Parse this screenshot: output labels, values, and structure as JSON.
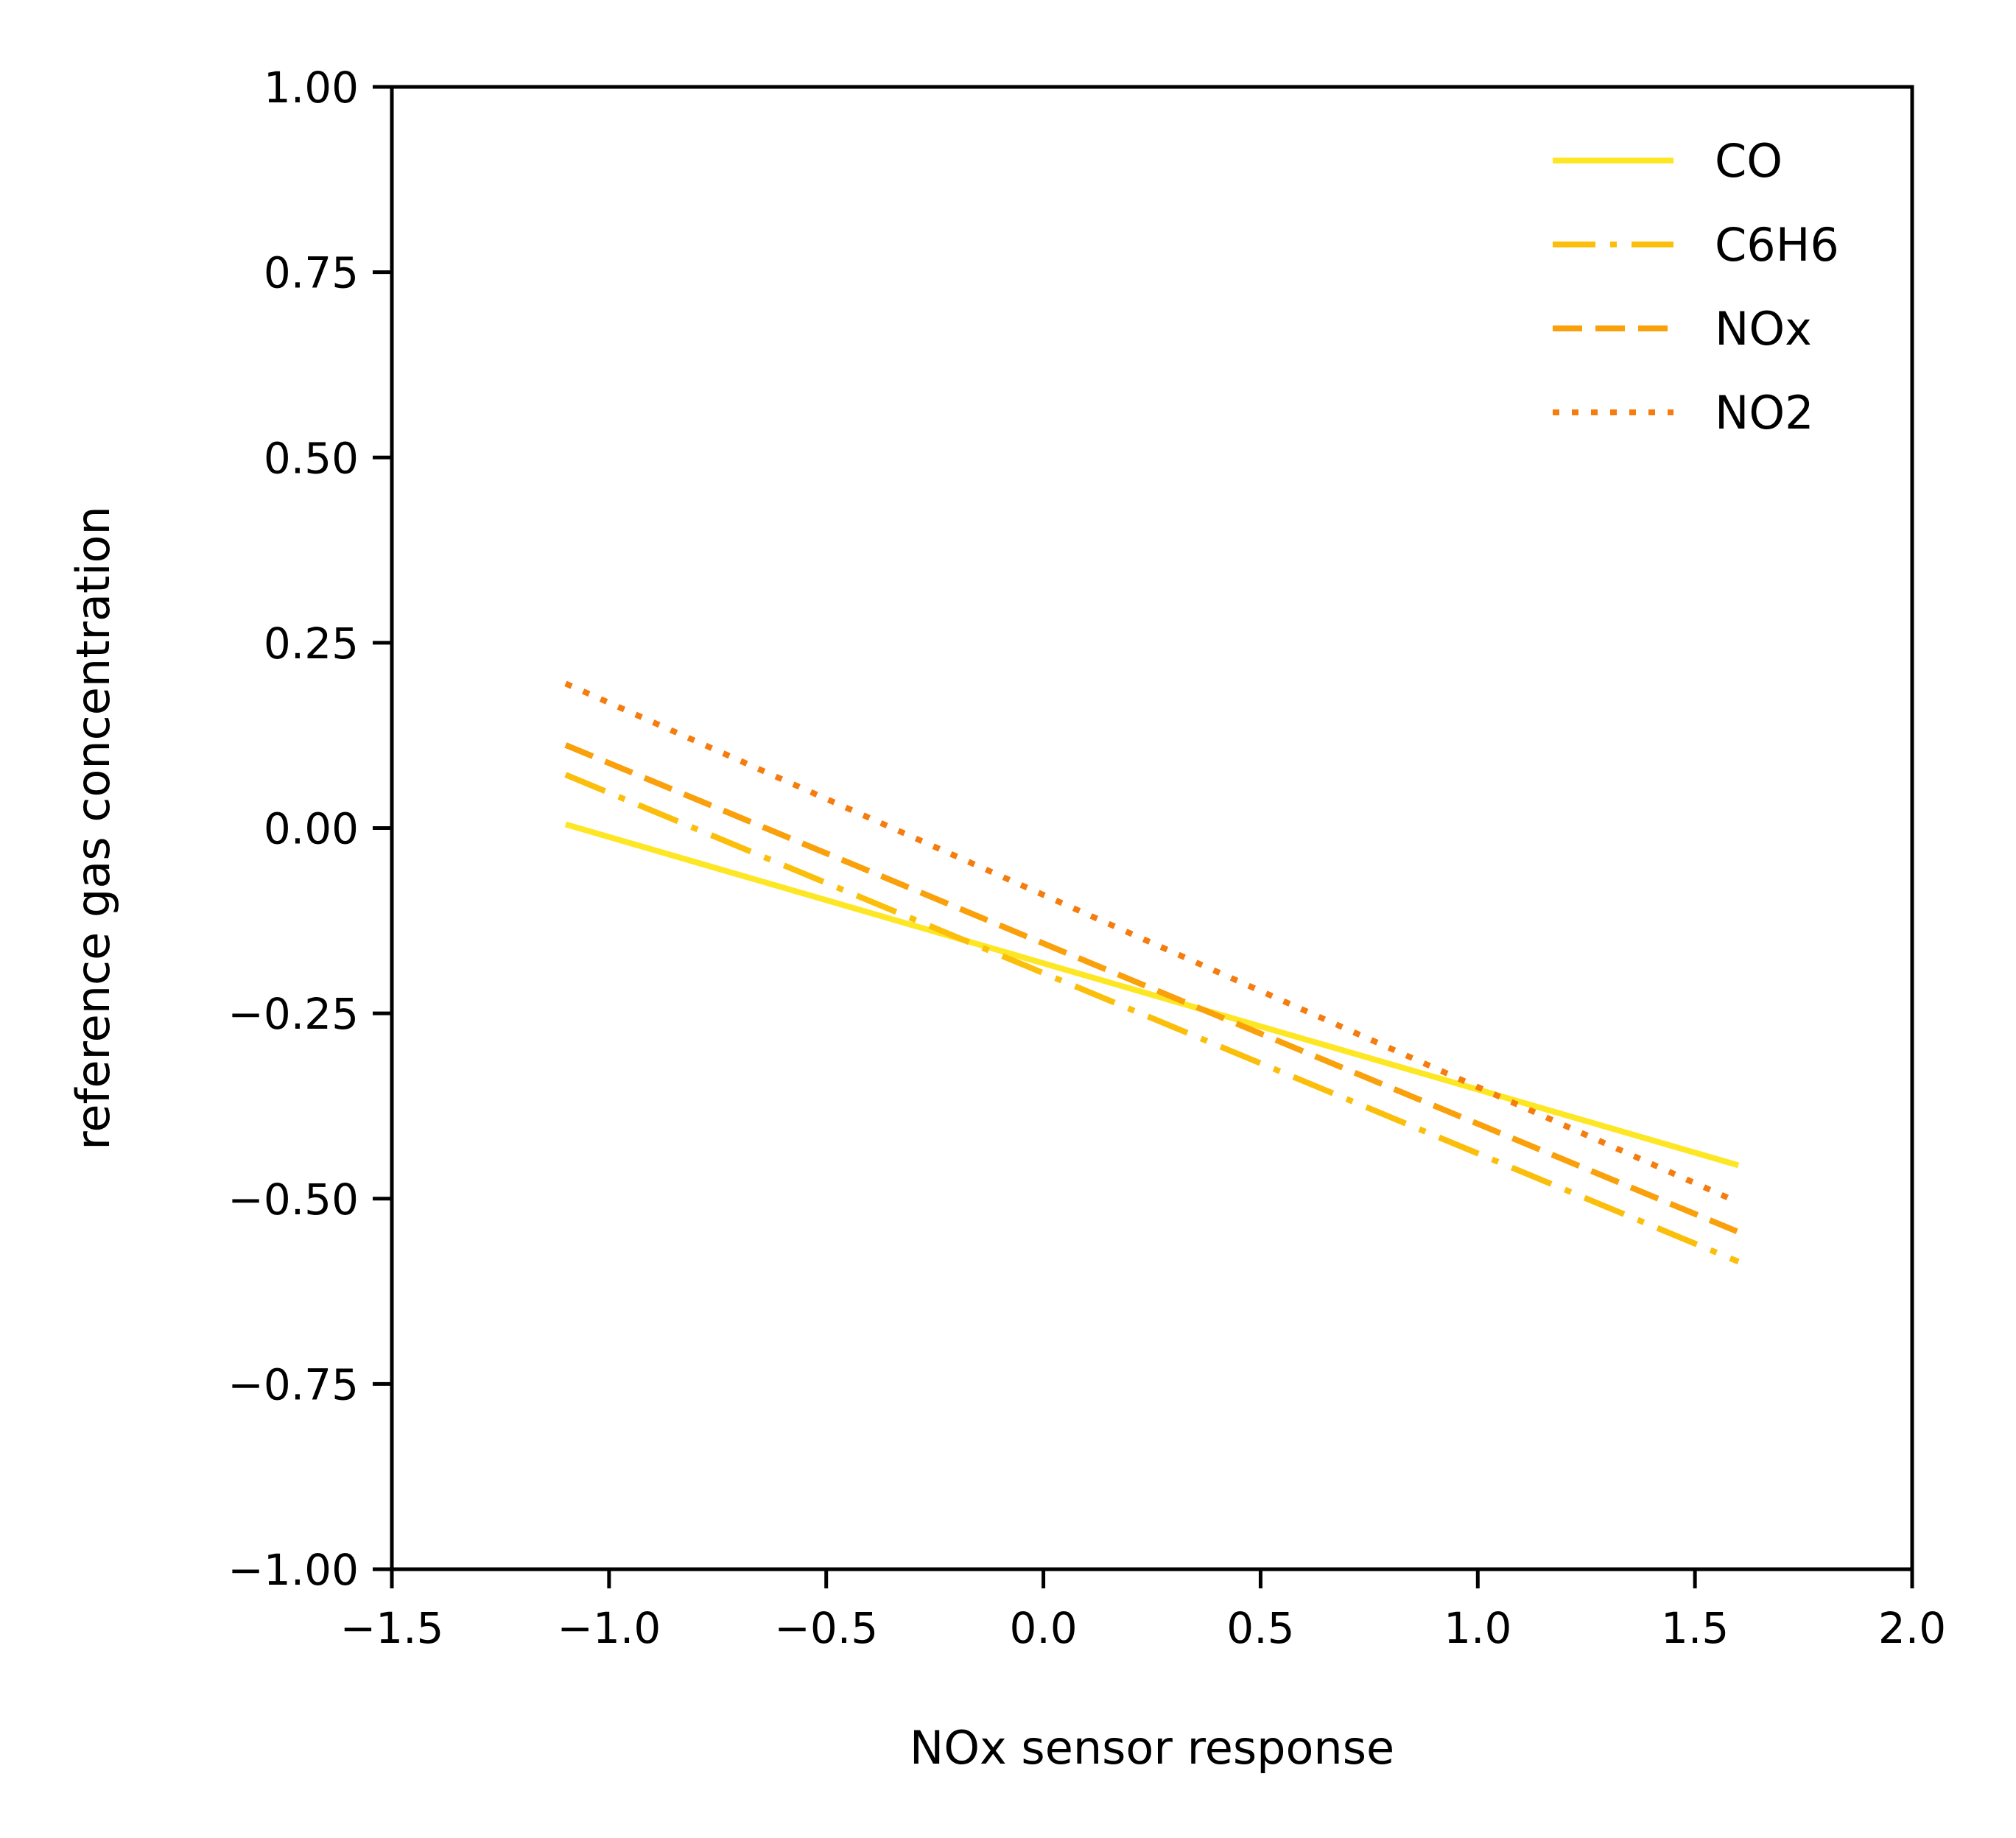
{
  "chart_data": {
    "type": "line",
    "title": "",
    "xlabel": "NOx sensor response",
    "ylabel": "reference gas concentration",
    "xlim": [
      -1.5,
      2.0
    ],
    "ylim": [
      -1.0,
      1.0
    ],
    "xticks": [
      -1.5,
      -1.0,
      -0.5,
      0.0,
      0.5,
      1.0,
      1.5,
      2.0
    ],
    "xtick_labels": [
      "−1.5",
      "−1.0",
      "−0.5",
      "0.0",
      "0.5",
      "1.0",
      "1.5",
      "2.0"
    ],
    "yticks": [
      1.0,
      0.75,
      0.5,
      0.25,
      0.0,
      -0.25,
      -0.5,
      -0.75,
      -1.0
    ],
    "ytick_labels": [
      "1.00",
      "0.75",
      "0.50",
      "0.25",
      "0.00",
      "−0.25",
      "−0.50",
      "−0.75",
      "−1.00"
    ],
    "grid": false,
    "legend_position": "top-right",
    "series": [
      {
        "name": "CO",
        "x": [
          -1.1,
          1.6
        ],
        "y": [
          0.005,
          -0.455
        ],
        "color": "#fde725",
        "style": "solid"
      },
      {
        "name": "C6H6",
        "x": [
          -1.1,
          1.6
        ],
        "y": [
          0.072,
          -0.585
        ],
        "color": "#fbbf0b",
        "style": "dashdot"
      },
      {
        "name": "NOx",
        "x": [
          -1.1,
          1.6
        ],
        "y": [
          0.112,
          -0.545
        ],
        "color": "#f9a00b",
        "style": "dashed"
      },
      {
        "name": "NO2",
        "x": [
          -1.1,
          1.6
        ],
        "y": [
          0.195,
          -0.505
        ],
        "color": "#f57d0f",
        "style": "dotted"
      }
    ]
  }
}
